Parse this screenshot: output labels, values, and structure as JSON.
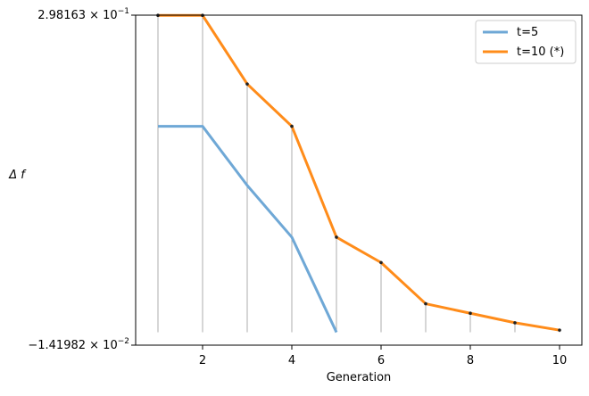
{
  "chart_data": {
    "type": "line",
    "title": "",
    "xlabel": "Generation",
    "ylabel": "Δ f",
    "xlim": [
      0.5,
      10.5
    ],
    "ylim": [
      -0.0141982,
      0.298163
    ],
    "x_ticks": [
      2,
      4,
      6,
      8,
      10
    ],
    "x_tick_labels": [
      "2",
      "4",
      "6",
      "8",
      "10"
    ],
    "y_tick_labels": {
      "top": {
        "base": "2.98163 × 10",
        "exp": "−1"
      },
      "bottom": {
        "base": "−1.41982 × 10",
        "exp": "−2"
      }
    },
    "grid": false,
    "legend_position": "top-right",
    "series": [
      {
        "name": "t=5",
        "color": "#6fa8d6",
        "x": [
          1,
          2,
          3,
          4,
          5
        ],
        "values": [
          0.193,
          0.193,
          0.137,
          0.088,
          -0.002
        ]
      },
      {
        "name": "t=10 (*)",
        "color": "#ff8c1a",
        "x": [
          1,
          2,
          3,
          4,
          5,
          6,
          7,
          8,
          9,
          10
        ],
        "values": [
          0.298,
          0.298,
          0.233,
          0.193,
          0.088,
          0.064,
          0.025,
          0.016,
          0.007,
          0.0
        ]
      }
    ],
    "stems": {
      "color": "#999999",
      "x": [
        1,
        2,
        3,
        4,
        5,
        6,
        7,
        8,
        9,
        10
      ],
      "base": -0.002
    }
  }
}
